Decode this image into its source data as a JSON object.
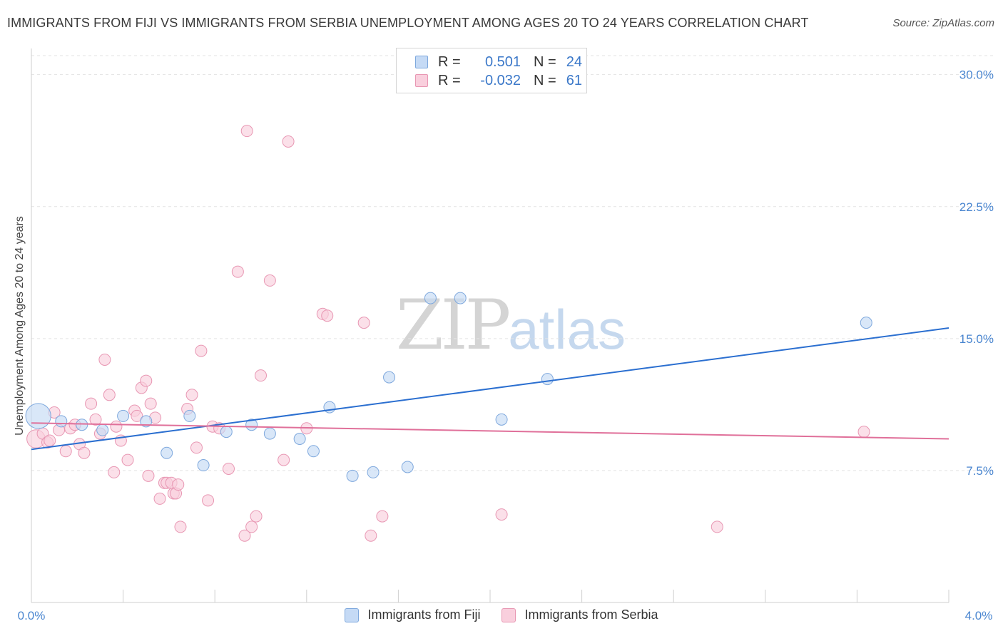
{
  "header": {
    "title": "IMMIGRANTS FROM FIJI VS IMMIGRANTS FROM SERBIA UNEMPLOYMENT AMONG AGES 20 TO 24 YEARS CORRELATION CHART",
    "source": "Source: ZipAtlas.com"
  },
  "watermark": {
    "zip": "ZIP",
    "atlas": "atlas"
  },
  "legend": {
    "fiji": {
      "r_label": "R =",
      "r_value": "0.501",
      "n_label": "N =",
      "n_value": "24"
    },
    "serbia": {
      "r_label": "R =",
      "r_value": "-0.032",
      "n_label": "N =",
      "n_value": "61"
    }
  },
  "bottom_legend": {
    "fiji": "Immigrants from Fiji",
    "serbia": "Immigrants from Serbia"
  },
  "colors": {
    "fiji_fill": "#c5daf5",
    "fiji_stroke": "#7ea8dd",
    "fiji_line": "#2b6fd0",
    "serbia_fill": "#f9cfdd",
    "serbia_stroke": "#e897b3",
    "serbia_line": "#e0709a",
    "grid": "#e3e3e3",
    "tick_text": "#4a86d0"
  },
  "chart_data": {
    "type": "scatter",
    "title": "IMMIGRANTS FROM FIJI VS IMMIGRANTS FROM SERBIA UNEMPLOYMENT AMONG AGES 20 TO 24 YEARS CORRELATION CHART",
    "xlabel": "",
    "ylabel": "Unemployment Among Ages 20 to 24 years",
    "xlim": [
      0,
      4.0
    ],
    "ylim": [
      0,
      31
    ],
    "x_tick_labels": [
      "0.0%",
      "4.0%"
    ],
    "y_ticks": [
      7.5,
      15.0,
      22.5,
      30.0
    ],
    "y_tick_labels": [
      "7.5%",
      "15.0%",
      "22.5%",
      "30.0%"
    ],
    "grid": true,
    "legend_position": "top-center",
    "series": [
      {
        "name": "Immigrants from Fiji",
        "r": 0.501,
        "n": 24,
        "trend": [
          [
            0.0,
            8.7
          ],
          [
            4.0,
            15.6
          ]
        ],
        "points": [
          [
            0.03,
            10.6,
            2.2
          ],
          [
            0.13,
            10.3,
            1
          ],
          [
            0.22,
            10.1,
            1
          ],
          [
            0.31,
            9.8,
            1
          ],
          [
            0.4,
            10.6,
            1
          ],
          [
            0.5,
            10.3,
            1
          ],
          [
            0.59,
            8.5,
            1
          ],
          [
            0.69,
            10.6,
            1
          ],
          [
            0.75,
            7.8,
            1
          ],
          [
            0.85,
            9.7,
            1
          ],
          [
            0.96,
            10.1,
            1
          ],
          [
            1.04,
            9.6,
            1
          ],
          [
            1.17,
            9.3,
            1
          ],
          [
            1.23,
            8.6,
            1
          ],
          [
            1.3,
            11.1,
            1
          ],
          [
            1.4,
            7.2,
            1
          ],
          [
            1.49,
            7.4,
            1
          ],
          [
            1.56,
            12.8,
            1
          ],
          [
            1.64,
            7.7,
            1
          ],
          [
            1.74,
            17.3,
            1
          ],
          [
            1.87,
            17.3,
            1
          ],
          [
            2.05,
            10.4,
            1
          ],
          [
            2.25,
            12.7,
            1
          ],
          [
            3.64,
            15.9,
            1
          ]
        ]
      },
      {
        "name": "Immigrants from Serbia",
        "r": -0.032,
        "n": 61,
        "trend": [
          [
            0.0,
            10.2
          ],
          [
            4.0,
            9.3
          ]
        ],
        "points": [
          [
            0.02,
            9.3,
            1.6
          ],
          [
            0.05,
            9.6,
            1
          ],
          [
            0.07,
            9.1,
            1
          ],
          [
            0.1,
            10.8,
            1
          ],
          [
            0.12,
            9.8,
            1
          ],
          [
            0.15,
            8.6,
            1
          ],
          [
            0.17,
            9.9,
            1
          ],
          [
            0.19,
            10.1,
            1
          ],
          [
            0.21,
            9.0,
            1
          ],
          [
            0.23,
            8.5,
            1
          ],
          [
            0.26,
            11.3,
            1
          ],
          [
            0.28,
            10.4,
            1
          ],
          [
            0.3,
            9.6,
            1
          ],
          [
            0.32,
            13.8,
            1
          ],
          [
            0.34,
            11.8,
            1
          ],
          [
            0.36,
            7.4,
            1
          ],
          [
            0.37,
            10.0,
            1
          ],
          [
            0.39,
            9.2,
            1
          ],
          [
            0.42,
            8.1,
            1
          ],
          [
            0.45,
            10.9,
            1
          ],
          [
            0.46,
            10.6,
            1
          ],
          [
            0.48,
            12.2,
            1
          ],
          [
            0.5,
            12.6,
            1
          ],
          [
            0.51,
            7.2,
            1
          ],
          [
            0.52,
            11.3,
            1
          ],
          [
            0.54,
            10.5,
            1
          ],
          [
            0.56,
            5.9,
            1
          ],
          [
            0.58,
            6.8,
            1
          ],
          [
            0.59,
            6.8,
            1
          ],
          [
            0.61,
            6.8,
            1
          ],
          [
            0.62,
            6.2,
            1
          ],
          [
            0.63,
            6.2,
            1
          ],
          [
            0.64,
            6.7,
            1
          ],
          [
            0.65,
            4.3,
            1
          ],
          [
            0.68,
            11.0,
            1
          ],
          [
            0.7,
            11.8,
            1
          ],
          [
            0.72,
            8.8,
            1
          ],
          [
            0.74,
            14.3,
            1
          ],
          [
            0.77,
            5.8,
            1
          ],
          [
            0.79,
            10.0,
            1
          ],
          [
            0.82,
            9.9,
            1
          ],
          [
            0.86,
            7.6,
            1
          ],
          [
            0.9,
            18.8,
            1
          ],
          [
            0.93,
            3.8,
            1
          ],
          [
            0.94,
            26.8,
            1
          ],
          [
            0.96,
            4.3,
            1
          ],
          [
            0.98,
            4.9,
            1
          ],
          [
            1.0,
            12.9,
            1
          ],
          [
            1.04,
            18.3,
            1
          ],
          [
            1.1,
            8.1,
            1
          ],
          [
            1.12,
            26.2,
            1
          ],
          [
            1.2,
            9.9,
            1
          ],
          [
            1.27,
            16.4,
            1
          ],
          [
            1.29,
            16.3,
            1
          ],
          [
            1.45,
            15.9,
            1
          ],
          [
            1.48,
            3.8,
            1
          ],
          [
            1.53,
            4.9,
            1
          ],
          [
            2.05,
            5.0,
            1
          ],
          [
            2.99,
            4.3,
            1
          ],
          [
            3.63,
            9.7,
            1
          ],
          [
            0.08,
            9.2,
            1
          ]
        ]
      }
    ]
  }
}
